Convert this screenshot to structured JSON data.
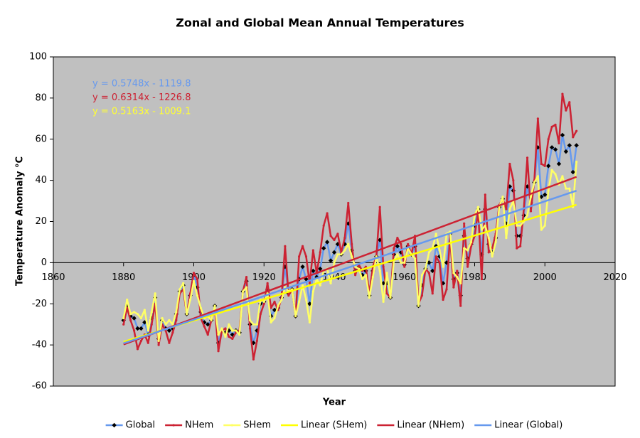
{
  "chart_data": {
    "type": "line",
    "title": "Zonal and Global Mean Annual Temperatures",
    "x_label": "Year",
    "y_label": "Temperature Anomaly °C",
    "xlim": [
      1860,
      2020
    ],
    "xticks": [
      1860,
      1880,
      1900,
      1920,
      1940,
      1960,
      1980,
      2000,
      2020
    ],
    "ylim": [
      -60,
      100
    ],
    "yticks": [
      -60,
      -40,
      -20,
      0,
      20,
      40,
      60,
      80,
      100
    ],
    "grid": false,
    "legend": "bottom",
    "annotations": [
      {
        "text": "y = 0.5748x - 1119.8",
        "color": "#6699ee"
      },
      {
        "text": "y = 0.6314x - 1226.8",
        "color": "#cc2233"
      },
      {
        "text": "y = 0.5163x - 1009.1",
        "color": "#ffff33"
      }
    ],
    "x": [
      1880,
      1881,
      1882,
      1883,
      1884,
      1885,
      1886,
      1887,
      1888,
      1889,
      1890,
      1891,
      1892,
      1893,
      1894,
      1895,
      1896,
      1897,
      1898,
      1899,
      1900,
      1901,
      1902,
      1903,
      1904,
      1905,
      1906,
      1907,
      1908,
      1909,
      1910,
      1911,
      1912,
      1913,
      1914,
      1915,
      1916,
      1917,
      1918,
      1919,
      1920,
      1921,
      1922,
      1923,
      1924,
      1925,
      1926,
      1927,
      1928,
      1929,
      1930,
      1931,
      1932,
      1933,
      1934,
      1935,
      1936,
      1937,
      1938,
      1939,
      1940,
      1941,
      1942,
      1943,
      1944,
      1945,
      1946,
      1947,
      1948,
      1949,
      1950,
      1951,
      1952,
      1953,
      1954,
      1955,
      1956,
      1957,
      1958,
      1959,
      1960,
      1961,
      1962,
      1963,
      1964,
      1965,
      1966,
      1967,
      1968,
      1969,
      1970,
      1971,
      1972,
      1973,
      1974,
      1975,
      1976,
      1977,
      1978,
      1979,
      1980,
      1981,
      1982,
      1983,
      1984,
      1985,
      1986,
      1987,
      1988,
      1989,
      1990,
      1991,
      1992,
      1993,
      1994,
      1995,
      1996,
      1997,
      1998,
      1999,
      2000,
      2001,
      2002,
      2003,
      2004,
      2005,
      2006,
      2007,
      2008,
      2009
    ],
    "series": [
      {
        "name": "Global",
        "color": "#6699ee",
        "marker": "diamond",
        "values": [
          -28,
          -21,
          -26,
          -27,
          -32,
          -32,
          -29,
          -35,
          -27,
          -17,
          -37,
          -28,
          -32,
          -33,
          -32,
          -25,
          -14,
          -11,
          -25,
          -16,
          -6,
          -12,
          -24,
          -29,
          -30,
          -28,
          -21,
          -39,
          -33,
          -34,
          -33,
          -35,
          -33,
          -34,
          -14,
          -9,
          -30,
          -39,
          -33,
          -20,
          -19,
          -13,
          -26,
          -23,
          -22,
          -17,
          -2,
          -15,
          -13,
          -26,
          -8,
          -2,
          -8,
          -20,
          -4,
          -7,
          -3,
          7,
          10,
          1,
          5,
          9,
          4,
          9,
          19,
          6,
          -4,
          -2,
          -6,
          -4,
          -16,
          -4,
          3,
          11,
          -10,
          -10,
          -17,
          4,
          8,
          5,
          -1,
          8,
          4,
          8,
          -21,
          -11,
          -3,
          0,
          -4,
          8,
          3,
          -10,
          0,
          14,
          -8,
          -5,
          -16,
          13,
          2,
          9,
          18,
          26,
          4,
          26,
          9,
          5,
          12,
          27,
          31,
          19,
          37,
          35,
          13,
          13,
          23,
          37,
          29,
          39,
          56,
          32,
          33,
          47,
          56,
          55,
          48,
          62,
          54,
          57,
          44,
          57
        ]
      },
      {
        "name": "NHem",
        "color": "#cc2233",
        "marker": "dot",
        "values": [
          -30,
          -22,
          -28,
          -33,
          -42,
          -38,
          -35,
          -39,
          -30,
          -20,
          -40,
          -30,
          -33,
          -39,
          -34,
          -28,
          -15,
          -13,
          -25,
          -15,
          -5,
          -8,
          -27,
          -31,
          -35,
          -28,
          -22,
          -43,
          -33,
          -32,
          -36,
          -37,
          -34,
          -33,
          -14,
          -7,
          -32,
          -47,
          -38,
          -25,
          -20,
          -10,
          -22,
          -19,
          -23,
          -17,
          8,
          -16,
          -13,
          -26,
          3,
          8,
          3,
          -10,
          6,
          -5,
          5,
          18,
          24,
          13,
          11,
          14,
          5,
          12,
          29,
          9,
          -6,
          -1,
          -4,
          -2,
          -15,
          -2,
          3,
          27,
          -2,
          -15,
          -17,
          7,
          12,
          9,
          -2,
          9,
          4,
          13,
          -20,
          -16,
          -3,
          -5,
          -15,
          3,
          0,
          -18,
          -13,
          13,
          -12,
          -4,
          -21,
          19,
          -2,
          8,
          13,
          25,
          -8,
          33,
          5,
          7,
          14,
          28,
          31,
          26,
          48,
          40,
          7,
          8,
          26,
          51,
          25,
          40,
          70,
          48,
          47,
          60,
          66,
          67,
          58,
          82,
          74,
          78,
          61,
          64
        ]
      },
      {
        "name": "SHem",
        "color": "#ffff66",
        "marker": "dot",
        "values": [
          -27,
          -18,
          -25,
          -24,
          -25,
          -27,
          -23,
          -33,
          -24,
          -15,
          -38,
          -27,
          -30,
          -28,
          -30,
          -24,
          -13,
          -10,
          -25,
          -18,
          -9,
          -16,
          -22,
          -27,
          -26,
          -28,
          -21,
          -35,
          -32,
          -36,
          -30,
          -33,
          -33,
          -35,
          -14,
          -12,
          -28,
          -30,
          -30,
          -18,
          -19,
          -15,
          -29,
          -27,
          -21,
          -18,
          -12,
          -14,
          -13,
          -26,
          -19,
          -11,
          -18,
          -29,
          -14,
          -8,
          -11,
          -4,
          -3,
          -10,
          0,
          4,
          4,
          6,
          9,
          3,
          -2,
          -3,
          -8,
          -6,
          -17,
          -7,
          3,
          -4,
          -19,
          -5,
          -17,
          1,
          4,
          0,
          0,
          7,
          4,
          2,
          -21,
          -6,
          -3,
          5,
          7,
          14,
          6,
          -2,
          14,
          15,
          -5,
          -7,
          -10,
          7,
          6,
          10,
          23,
          27,
          16,
          18,
          12,
          3,
          10,
          27,
          32,
          12,
          26,
          30,
          18,
          18,
          20,
          23,
          32,
          39,
          42,
          16,
          18,
          35,
          45,
          43,
          38,
          42,
          36,
          36,
          27,
          49
        ]
      },
      {
        "name": "Linear (SHem)",
        "color": "#ffff00",
        "marker": "none",
        "x": [
          1880,
          2009
        ],
        "values": [
          -38.46,
          28.15
        ]
      },
      {
        "name": "Linear (NHem)",
        "color": "#cc2233",
        "marker": "none",
        "x": [
          1880,
          2009
        ],
        "values": [
          -39.77,
          41.68
        ]
      },
      {
        "name": "Linear (Global)",
        "color": "#6699ee",
        "marker": "none",
        "x": [
          1880,
          2009
        ],
        "values": [
          -39.2,
          34.97
        ]
      }
    ]
  }
}
